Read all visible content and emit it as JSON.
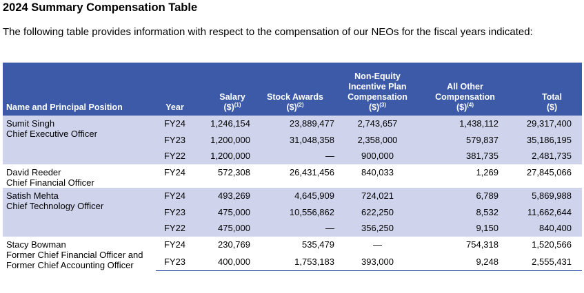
{
  "heading": "2024 Summary Compensation Table",
  "intro": "The following table provides information with respect to the compensation of our NEOs for the fiscal years indicated:",
  "header": {
    "name": "Name and Principal Position",
    "year": "Year",
    "salary": "Salary",
    "salary_unit": "($)",
    "salary_note": "(1)",
    "stock": "Stock Awards",
    "stock_unit": "($)",
    "stock_note": "(2)",
    "noneq_l1": "Non-Equity",
    "noneq_l2": "Incentive Plan",
    "noneq_l3": "Compensation",
    "noneq_unit": "($)",
    "noneq_note": "(3)",
    "other_l1": "All Other",
    "other_l2": "Compensation",
    "other_unit": "($)",
    "other_note": "(4)",
    "total": "Total",
    "total_unit": "($)"
  },
  "rows": [
    {
      "name": "Sumit Singh",
      "pos": "Chief Executive Officer",
      "year": "FY24",
      "salary": "1,246,154",
      "stock": "23,889,477",
      "noneq": "2,743,657",
      "other": "1,438,112",
      "total": "29,317,400"
    },
    {
      "name": "",
      "pos": "",
      "year": "FY23",
      "salary": "1,200,000",
      "stock": "31,048,358",
      "noneq": "2,358,000",
      "other": "579,837",
      "total": "35,186,195"
    },
    {
      "name": "",
      "pos": "",
      "year": "FY22",
      "salary": "1,200,000",
      "stock": "—",
      "noneq": "900,000",
      "other": "381,735",
      "total": "2,481,735"
    },
    {
      "name": "David Reeder",
      "pos": "Chief Financial Officer",
      "year": "FY24",
      "salary": "572,308",
      "stock": "26,431,456",
      "noneq": "840,033",
      "other": "1,269",
      "total": "27,845,066"
    },
    {
      "name": "Satish Mehta",
      "pos": "Chief Technology Officer",
      "year": "FY24",
      "salary": "493,269",
      "stock": "4,645,909",
      "noneq": "724,021",
      "other": "6,789",
      "total": "5,869,988"
    },
    {
      "name": "",
      "pos": "",
      "year": "FY23",
      "salary": "475,000",
      "stock": "10,556,862",
      "noneq": "622,250",
      "other": "8,532",
      "total": "11,662,644"
    },
    {
      "name": "",
      "pos": "",
      "year": "FY22",
      "salary": "475,000",
      "stock": "—",
      "noneq": "356,250",
      "other": "9,150",
      "total": "840,400"
    },
    {
      "name": "Stacy Bowman",
      "pos": "Former Chief Financial Officer and Former Chief Accounting Officer",
      "year": "FY24",
      "salary": "230,769",
      "stock": "535,479",
      "noneq": "—",
      "other": "754,318",
      "total": "1,520,566"
    },
    {
      "name": "",
      "pos": "",
      "year": "FY23",
      "salary": "400,000",
      "stock": "1,753,183",
      "noneq": "393,000",
      "other": "9,248",
      "total": "2,555,431"
    }
  ]
}
